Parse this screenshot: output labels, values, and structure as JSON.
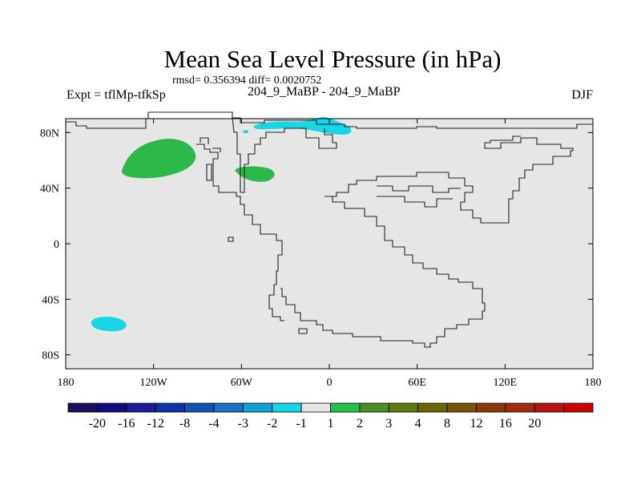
{
  "title": "Mean Sea Level Pressure (in hPa)",
  "stats": "rmsd= 0.356394 diff= 0.0020752",
  "experiment_label": "Expt = tflMp-tfkSp",
  "center_label": "204_9_MaBP - 204_9_MaBP",
  "season": "DJF",
  "map": {
    "projection": "cylindrical-equidistant",
    "lon_range": [
      -180,
      180
    ],
    "lat_range": [
      -90,
      90
    ],
    "background_color": "#e6e6e6",
    "lat_ticks": [
      {
        "value": 80,
        "label": "80N"
      },
      {
        "value": 40,
        "label": "40N"
      },
      {
        "value": 0,
        "label": "0"
      },
      {
        "value": -40,
        "label": "40S"
      },
      {
        "value": -80,
        "label": "80S"
      }
    ],
    "lon_ticks": [
      {
        "value": -180,
        "label": "180"
      },
      {
        "value": -120,
        "label": "120W"
      },
      {
        "value": -60,
        "label": "60W"
      },
      {
        "value": 0,
        "label": "0"
      },
      {
        "value": 60,
        "label": "60E"
      },
      {
        "value": 120,
        "label": "120E"
      },
      {
        "value": 180,
        "label": "180"
      }
    ],
    "anomaly_regions": [
      {
        "name": "north-pacific-positive",
        "category": "1 to 2",
        "color": "#2db84a"
      },
      {
        "name": "north-atlantic-positive",
        "category": "1 to 2",
        "color": "#2db84a"
      },
      {
        "name": "arctic-negative",
        "category": "-2 to -1",
        "color": "#19d6e6"
      },
      {
        "name": "south-pacific-negative",
        "category": "-2 to -1",
        "color": "#19d6e6"
      }
    ]
  },
  "colorbar": {
    "colors": [
      "#1a0f5e",
      "#140a80",
      "#1c1c9c",
      "#0f33a6",
      "#1452b3",
      "#1a70c2",
      "#10a0d6",
      "#19d6e6",
      "#e6e6e6",
      "#26bf4a",
      "#4a8c26",
      "#5c7a10",
      "#6b6600",
      "#7a520a",
      "#8c380a",
      "#a3290f",
      "#b5140f",
      "#cc0000"
    ],
    "labels": [
      "-20",
      "-16",
      "-12",
      "-8",
      "-4",
      "-3",
      "-2",
      "-1",
      "1",
      "2",
      "3",
      "4",
      "8",
      "12",
      "16",
      "20"
    ]
  }
}
